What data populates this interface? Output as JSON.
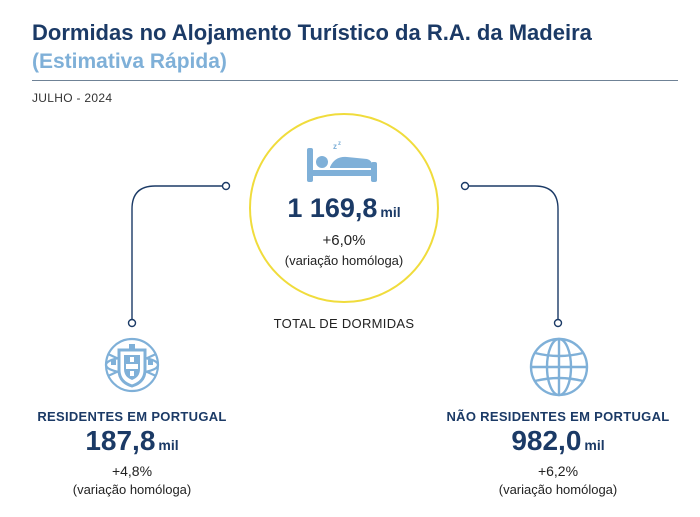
{
  "header": {
    "title": "Dormidas no Alojamento Turístico da R.A. da Madeira",
    "subtitle": "(Estimativa Rápida)",
    "period": "JULHO - 2024"
  },
  "total": {
    "value": "1 169,8",
    "unit": "mil",
    "change": "+6,0%",
    "note": "(variação homóloga)",
    "label": "TOTAL DE DORMIDAS"
  },
  "residents": {
    "label": "RESIDENTES EM PORTUGAL",
    "value": "187,8",
    "unit": "mil",
    "change": "+4,8%",
    "note": "(variação homóloga)"
  },
  "non_residents": {
    "label": "NÃO RESIDENTES EM PORTUGAL",
    "value": "982,0",
    "unit": "mil",
    "change": "+6,2%",
    "note": "(variação homóloga)"
  },
  "icons": {
    "center": "bed-icon",
    "left": "portugal-shield-icon",
    "right": "globe-icon"
  },
  "colors": {
    "title": "#1b3a66",
    "subtitle": "#7fb0d8",
    "circle_border": "#f0dc3c",
    "icon": "#7fb0d8",
    "connector": "#1b3a66"
  }
}
